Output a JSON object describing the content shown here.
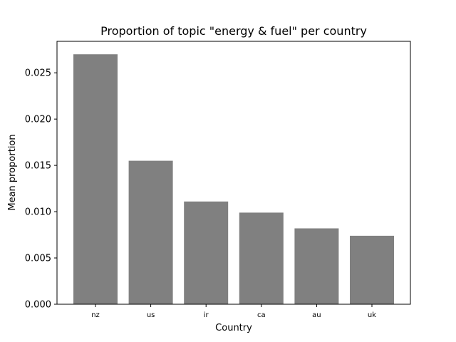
{
  "chart_data": {
    "type": "bar",
    "title": "Proportion of topic \"energy & fuel\" per country",
    "xlabel": "Country",
    "ylabel": "Mean proportion",
    "categories": [
      "nz",
      "us",
      "ir",
      "ca",
      "au",
      "uk"
    ],
    "values": [
      0.027,
      0.0155,
      0.0111,
      0.0099,
      0.0082,
      0.0074
    ],
    "ylim": [
      0,
      0.0284
    ],
    "yticks": [
      "0.000",
      "0.005",
      "0.010",
      "0.015",
      "0.020",
      "0.025"
    ],
    "bar_color": "#808080",
    "grid": false,
    "legend": "none"
  }
}
